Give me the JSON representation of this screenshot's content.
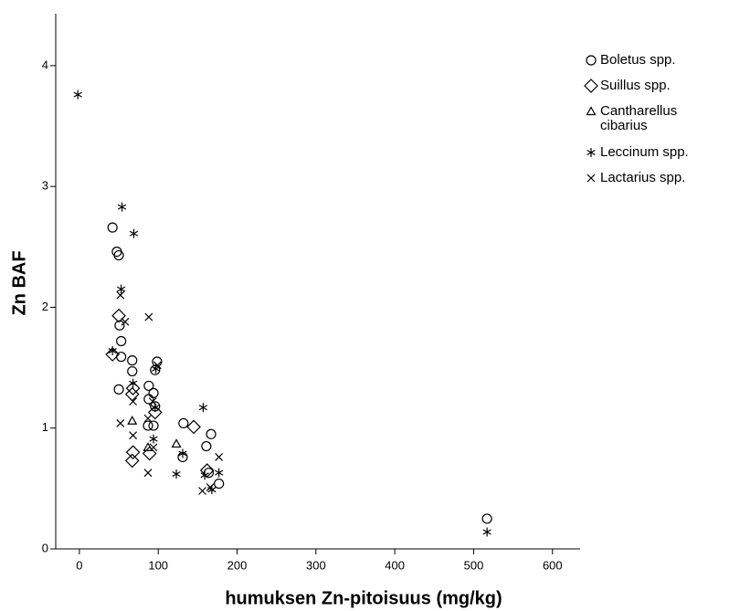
{
  "chart_data": {
    "type": "scatter",
    "xlabel": "humuksen Zn-pitoisuus (mg/kg)",
    "ylabel": "Zn BAF",
    "xlim": [
      -30,
      635
    ],
    "ylim": [
      0,
      4.43
    ],
    "xticks": [
      0,
      100,
      200,
      300,
      400,
      500,
      600
    ],
    "yticks": [
      0,
      1,
      2,
      3,
      4
    ],
    "legend": "right",
    "series": [
      {
        "name": "Boletus spp.",
        "color": "#000000",
        "marker": "circle",
        "x": [
          42,
          47.5,
          50,
          51,
          53,
          53,
          50,
          67,
          67,
          98.5,
          96,
          88,
          88,
          94,
          96,
          87,
          94,
          132,
          131,
          167,
          161,
          164,
          177,
          517
        ],
        "values": [
          2.66,
          2.46,
          2.43,
          1.85,
          1.72,
          1.59,
          1.32,
          1.56,
          1.47,
          1.55,
          1.48,
          1.35,
          1.24,
          1.29,
          1.18,
          1.02,
          1.02,
          1.04,
          0.76,
          0.95,
          0.85,
          0.63,
          0.54,
          0.25
        ]
      },
      {
        "name": "Suillus spp.",
        "color": "#000000",
        "marker": "diamond",
        "x": [
          50,
          42,
          68,
          67,
          96,
          68,
          67,
          89,
          145,
          162
        ],
        "values": [
          1.93,
          1.61,
          1.33,
          1.28,
          1.13,
          0.8,
          0.73,
          0.79,
          1.01,
          0.65
        ]
      },
      {
        "name": "Cantharellus cibarius",
        "color": "#000000",
        "marker": "triangle",
        "x": [
          67,
          123,
          87
        ],
        "values": [
          1.06,
          0.87,
          0.84
        ]
      },
      {
        "name": "Leccinum spp.",
        "color": "#000000",
        "marker": "star",
        "x": [
          -2,
          54,
          69,
          53,
          42,
          68,
          97,
          96,
          94,
          131,
          123,
          157,
          159,
          168,
          177,
          517
        ],
        "values": [
          3.76,
          2.83,
          2.61,
          2.15,
          1.64,
          1.37,
          1.49,
          1.17,
          0.91,
          0.79,
          0.62,
          1.17,
          0.61,
          0.49,
          0.63,
          0.14
        ]
      },
      {
        "name": "Lactarius spp.",
        "color": "#000000",
        "marker": "x",
        "x": [
          52,
          58,
          88,
          52,
          68,
          68,
          87,
          87,
          93,
          99,
          177,
          156,
          94,
          166
        ],
        "values": [
          2.1,
          1.88,
          1.92,
          1.04,
          1.22,
          0.94,
          0.63,
          1.08,
          1.22,
          1.52,
          0.76,
          0.48,
          0.84,
          0.51
        ]
      }
    ]
  }
}
